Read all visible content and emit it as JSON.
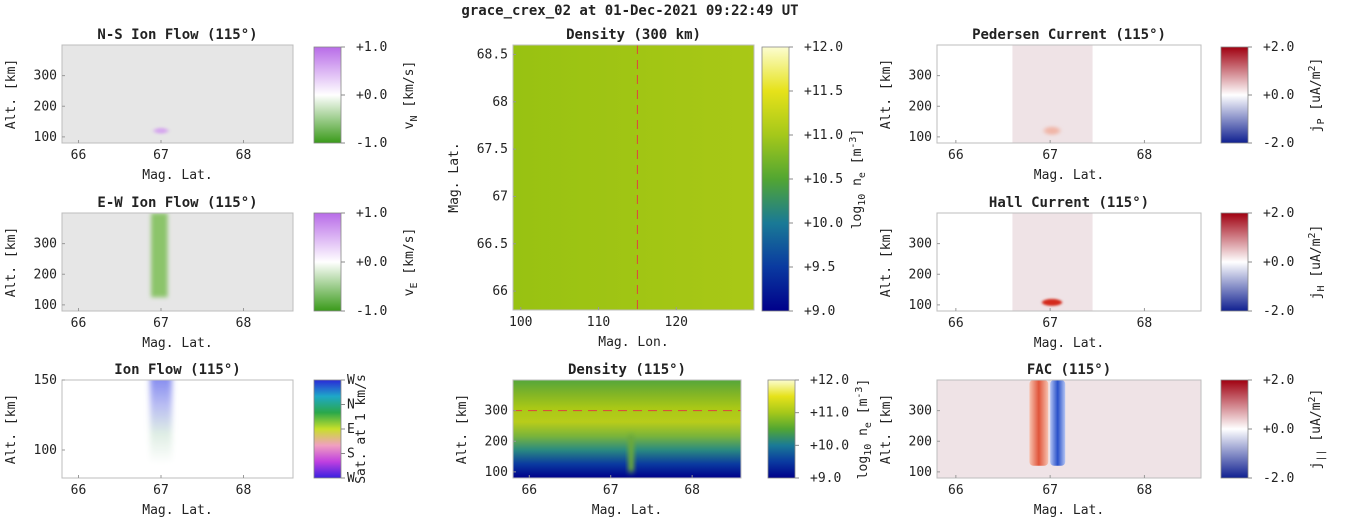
{
  "figure_title": "grace_crex_02 at 01-Dec-2021 09:22:49 UT",
  "colors": {
    "panel_gray": "#e6e6e6",
    "panel_pink": "#efe3e6",
    "density_green": "#92bf12",
    "dashed_line": "#e04040"
  },
  "chart_data": [
    {
      "id": "ns_ion_flow",
      "type": "heatmap",
      "title": "N-S Ion Flow (115°)",
      "xlabel": "Mag. Lat.",
      "ylabel": "Alt. [km]",
      "xlim": [
        65.8,
        68.6
      ],
      "ylim": [
        80,
        400
      ],
      "xticks": [
        "66",
        "67",
        "68"
      ],
      "yticks": [
        "100",
        "200",
        "300"
      ],
      "colorbar": {
        "label_main": "v",
        "label_sub": "N",
        "label_unit": " [km/s]",
        "range": [
          -1.0,
          1.0
        ],
        "ticks": [
          "+1.0",
          "+0.0",
          "-1.0"
        ],
        "colors": [
          "#b86ce8",
          "#ffffff",
          "#3a9a1a"
        ]
      },
      "features": [
        {
          "lat": 67.0,
          "alt": 120,
          "value": 0.2
        }
      ]
    },
    {
      "id": "ew_ion_flow",
      "type": "heatmap",
      "title": "E-W Ion Flow (115°)",
      "xlabel": "Mag. Lat.",
      "ylabel": "Alt. [km]",
      "xlim": [
        65.8,
        68.6
      ],
      "ylim": [
        80,
        400
      ],
      "xticks": [
        "66",
        "67",
        "68"
      ],
      "yticks": [
        "100",
        "200",
        "300"
      ],
      "colorbar": {
        "label_main": "v",
        "label_sub": "E",
        "label_unit": " [km/s]",
        "range": [
          -1.0,
          1.0
        ],
        "ticks": [
          "+1.0",
          "+0.0",
          "-1.0"
        ],
        "colors": [
          "#b86ce8",
          "#ffffff",
          "#3a9a1a"
        ]
      },
      "features": [
        {
          "lat_min": 66.88,
          "lat_max": 67.08,
          "alt_min": 125,
          "alt_max": 400,
          "value": -0.5
        }
      ]
    },
    {
      "id": "ion_flow",
      "type": "heatmap",
      "title": "Ion Flow (115°)",
      "xlabel": "Mag. Lat.",
      "ylabel": "Alt. [km]",
      "xlim": [
        65.8,
        68.6
      ],
      "ylim": [
        80,
        150
      ],
      "xticks": [
        "66",
        "67",
        "68"
      ],
      "yticks": [
        "100",
        "150"
      ],
      "colorbar": {
        "label_main": "Sat. at 1 km/s",
        "ticks": [
          "W",
          "N",
          "E",
          "S",
          "W"
        ],
        "colors": [
          "#2a2ad8",
          "#1ea8c8",
          "#2aa84a",
          "#c8e02a",
          "#f0a0c0",
          "#c040e0",
          "#3a20e0"
        ]
      },
      "features": [
        {
          "lat": 67.0,
          "alt_min": 115,
          "alt_max": 150,
          "direction": "W"
        }
      ]
    },
    {
      "id": "density_map",
      "type": "heatmap",
      "title": "Density (300 km)",
      "xlabel": "Mag. Lon.",
      "ylabel": "Mag. Lat.",
      "xlim": [
        99,
        130
      ],
      "ylim": [
        65.8,
        68.6
      ],
      "xticks": [
        "100",
        "110",
        "120"
      ],
      "yticks": [
        "68.5",
        "68",
        "67.5",
        "67",
        "66.5",
        "66"
      ],
      "colorbar": {
        "label_main": "log",
        "label_sub": "10",
        "label_unit": " n",
        "label_unit_sub": "e",
        "label_bracket": " [m",
        "label_sup": "-3",
        "label_end": "]",
        "range": [
          9.0,
          12.0
        ],
        "ticks": [
          "+12.0",
          "+11.5",
          "+11.0",
          "+10.5",
          "+10.0",
          "+9.5",
          "+9.0"
        ],
        "colors": [
          "#fcfdd0",
          "#e6e21a",
          "#a5c81a",
          "#52a632",
          "#1a7a96",
          "#0a3aa0",
          "#00008a"
        ]
      },
      "marker_lon": 115,
      "value_range": [
        10.9,
        11.2
      ]
    },
    {
      "id": "density_profile",
      "type": "heatmap",
      "title": "Density (115°)",
      "xlabel": "Mag. Lat.",
      "ylabel": "Alt. [km]",
      "xlim": [
        65.8,
        68.6
      ],
      "ylim": [
        80,
        400
      ],
      "xticks": [
        "66",
        "67",
        "68"
      ],
      "yticks": [
        "100",
        "200",
        "300"
      ],
      "colorbar": {
        "label_main": "log",
        "label_sub": "10",
        "label_unit": " n",
        "label_unit_sub": "e",
        "label_bracket": " [m",
        "label_sup": "-3",
        "label_end": "]",
        "range": [
          9.0,
          12.0
        ],
        "ticks": [
          "+12.0",
          "+11.0",
          "+10.0",
          "+9.0"
        ],
        "colors": [
          "#fcfdd0",
          "#e6e21a",
          "#a5c81a",
          "#52a632",
          "#1a7a96",
          "#0a3aa0",
          "#00008a"
        ]
      },
      "marker_alt": 300,
      "features": [
        {
          "lat": 67.25,
          "alt_min": 100,
          "alt_max": 220
        }
      ]
    },
    {
      "id": "pedersen_current",
      "type": "heatmap",
      "title": "Pedersen Current (115°)",
      "xlabel": "Mag. Lat.",
      "ylabel": "Alt. [km]",
      "xlim": [
        65.8,
        68.6
      ],
      "ylim": [
        80,
        400
      ],
      "xticks": [
        "66",
        "67",
        "68"
      ],
      "yticks": [
        "100",
        "200",
        "300"
      ],
      "colorbar": {
        "label_main": "j",
        "label_sub": "P",
        "label_unit": " [uA/m",
        "label_sup": "2",
        "label_end": "]",
        "range": [
          -2.0,
          2.0
        ],
        "ticks": [
          "+2.0",
          "+0.0",
          "-2.0"
        ],
        "colors": [
          "#a00010",
          "#ffffff",
          "#102090"
        ]
      },
      "features": [
        {
          "lat": 67.02,
          "alt": 120,
          "value": 0.4
        }
      ]
    },
    {
      "id": "hall_current",
      "type": "heatmap",
      "title": "Hall Current (115°)",
      "xlabel": "Mag. Lat.",
      "ylabel": "Alt. [km]",
      "xlim": [
        65.8,
        68.6
      ],
      "ylim": [
        80,
        400
      ],
      "xticks": [
        "66",
        "67",
        "68"
      ],
      "yticks": [
        "100",
        "200",
        "300"
      ],
      "colorbar": {
        "label_main": "j",
        "label_sub": "H",
        "label_unit": " [uA/m",
        "label_sup": "2",
        "label_end": "]",
        "range": [
          -2.0,
          2.0
        ],
        "ticks": [
          "+2.0",
          "+0.0",
          "-2.0"
        ],
        "colors": [
          "#a00010",
          "#ffffff",
          "#102090"
        ]
      },
      "features": [
        {
          "lat": 67.02,
          "alt": 108,
          "value": 1.4
        }
      ]
    },
    {
      "id": "fac",
      "type": "heatmap",
      "title": "FAC (115°)",
      "xlabel": "Mag. Lat.",
      "ylabel": "Alt. [km]",
      "xlim": [
        65.8,
        68.6
      ],
      "ylim": [
        80,
        400
      ],
      "xticks": [
        "66",
        "67",
        "68"
      ],
      "yticks": [
        "100",
        "200",
        "300"
      ],
      "colorbar": {
        "label_main": "j",
        "label_sub": "||",
        "label_unit": " [uA/m",
        "label_sup": "2",
        "label_end": "]",
        "range": [
          -2.0,
          2.0
        ],
        "ticks": [
          "+2.0",
          "+0.0",
          "-2.0"
        ],
        "colors": [
          "#a00010",
          "#ffffff",
          "#102090"
        ]
      },
      "features": [
        {
          "lat_min": 66.78,
          "lat_max": 66.98,
          "alt_min": 120,
          "alt_max": 400,
          "value": 1.5
        },
        {
          "lat_min": 67.0,
          "lat_max": 67.16,
          "alt_min": 120,
          "alt_max": 400,
          "value": -1.5
        }
      ]
    }
  ]
}
